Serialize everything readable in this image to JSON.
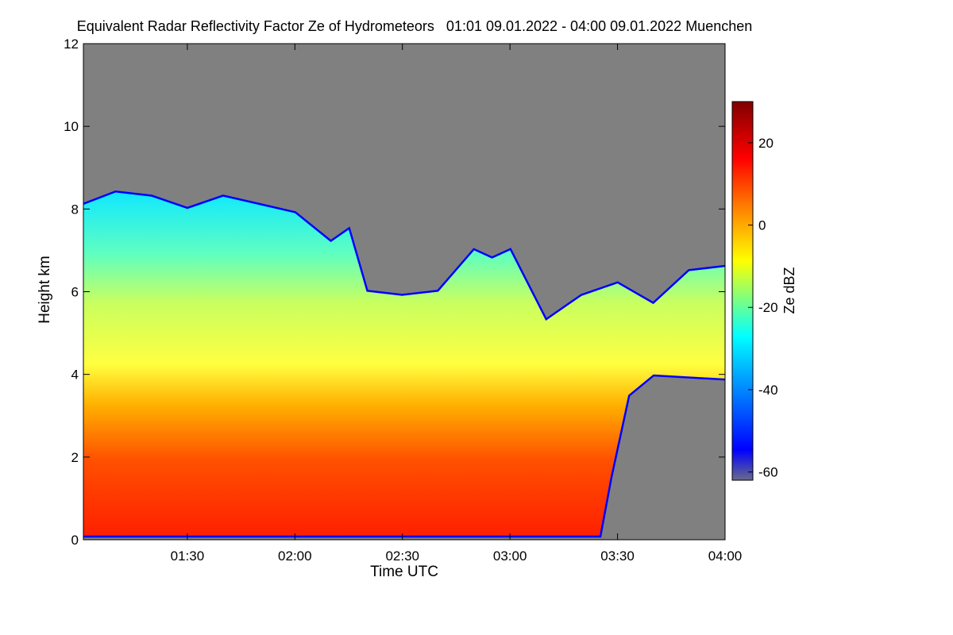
{
  "title": "Equivalent Radar Reflectivity Factor Ze of Hydrometeors   01:01 09.01.2022 - 04:00 09.01.2022 Muenchen",
  "colors": {
    "background_no_signal": "#808080",
    "frame": "#000000"
  },
  "chart_data": {
    "type": "heatmap",
    "title": "Equivalent Radar Reflectivity Factor Ze of Hydrometeors   01:01 09.01.2022 - 04:00 09.01.2022 Muenchen",
    "xlabel": "Time UTC",
    "ylabel": "Height km",
    "x_range": [
      "01:01",
      "04:00"
    ],
    "x_ticks": [
      "01:30",
      "02:00",
      "02:30",
      "03:00",
      "03:30",
      "04:00"
    ],
    "y_range": [
      0,
      12
    ],
    "y_ticks": [
      "0",
      "2",
      "4",
      "6",
      "8",
      "10",
      "12"
    ],
    "colorbar": {
      "label": "Ze dBZ",
      "range": [
        -62,
        30
      ],
      "ticks": [
        "20",
        "0",
        "-20",
        "-40",
        "-60"
      ],
      "colormap": [
        "#6a6a8a",
        "#0000ff",
        "#00ffff",
        "#ffff00",
        "#ff8000",
        "#ff0000",
        "#800000"
      ]
    },
    "echo_top_km": [
      {
        "time": "01:01",
        "top": 8.1
      },
      {
        "time": "01:10",
        "top": 8.4
      },
      {
        "time": "01:20",
        "top": 8.3
      },
      {
        "time": "01:30",
        "top": 8.0
      },
      {
        "time": "01:40",
        "top": 8.3
      },
      {
        "time": "01:50",
        "top": 8.1
      },
      {
        "time": "02:00",
        "top": 7.9
      },
      {
        "time": "02:10",
        "top": 7.2
      },
      {
        "time": "02:15",
        "top": 7.5
      },
      {
        "time": "02:20",
        "top": 6.0
      },
      {
        "time": "02:30",
        "top": 5.9
      },
      {
        "time": "02:40",
        "top": 6.0
      },
      {
        "time": "02:50",
        "top": 7.0
      },
      {
        "time": "02:55",
        "top": 6.8
      },
      {
        "time": "03:00",
        "top": 7.0
      },
      {
        "time": "03:10",
        "top": 5.3
      },
      {
        "time": "03:20",
        "top": 5.9
      },
      {
        "time": "03:30",
        "top": 6.2
      },
      {
        "time": "03:40",
        "top": 5.7
      },
      {
        "time": "03:50",
        "top": 6.5
      },
      {
        "time": "04:00",
        "top": 6.6
      }
    ],
    "echo_base_km": [
      {
        "time": "01:01",
        "base": 0.1
      },
      {
        "time": "03:25",
        "base": 0.1
      },
      {
        "time": "03:28",
        "base": 1.5
      },
      {
        "time": "03:33",
        "base": 3.5
      },
      {
        "time": "03:40",
        "base": 4.0
      },
      {
        "time": "04:00",
        "base": 3.9
      }
    ]
  }
}
